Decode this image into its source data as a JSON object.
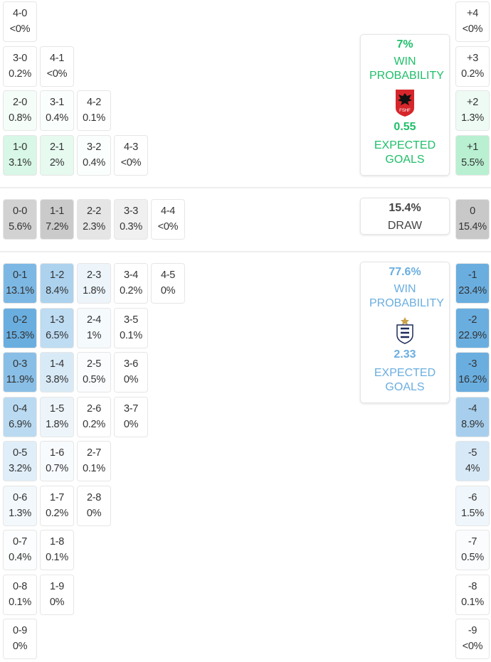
{
  "home": {
    "win_probability": "7%",
    "win_label": "WIN PROBABILITY",
    "expected_goals": "0.55",
    "xg_label": "EXPECTED GOALS",
    "crest": "albania-fshf-crest",
    "crest_text": "FSHF",
    "color": "#1fbf6a",
    "rows": [
      [
        {
          "s": "4-0",
          "p": "<0%"
        }
      ],
      [
        {
          "s": "3-0",
          "p": "0.2%"
        },
        {
          "s": "4-1",
          "p": "<0%"
        }
      ],
      [
        {
          "s": "2-0",
          "p": "0.8%"
        },
        {
          "s": "3-1",
          "p": "0.4%"
        },
        {
          "s": "4-2",
          "p": "0.1%"
        }
      ],
      [
        {
          "s": "1-0",
          "p": "3.1%"
        },
        {
          "s": "2-1",
          "p": "2%"
        },
        {
          "s": "3-2",
          "p": "0.4%"
        },
        {
          "s": "4-3",
          "p": "<0%"
        }
      ]
    ],
    "margins": [
      {
        "s": "+4",
        "p": "<0%"
      },
      {
        "s": "+3",
        "p": "0.2%"
      },
      {
        "s": "+2",
        "p": "1.3%"
      },
      {
        "s": "+1",
        "p": "5.5%"
      }
    ]
  },
  "draw": {
    "probability": "15.4%",
    "label": "DRAW",
    "row": [
      {
        "s": "0-0",
        "p": "5.6%"
      },
      {
        "s": "1-1",
        "p": "7.2%"
      },
      {
        "s": "2-2",
        "p": "2.3%"
      },
      {
        "s": "3-3",
        "p": "0.3%"
      },
      {
        "s": "4-4",
        "p": "<0%"
      }
    ],
    "margin": {
      "s": "0",
      "p": "15.4%"
    }
  },
  "away": {
    "win_probability": "77.6%",
    "win_label": "WIN PROBABILITY",
    "expected_goals": "2.33",
    "xg_label": "EXPECTED GOALS",
    "crest": "england-three-lions-crest",
    "color": "#6aaee0",
    "rows": [
      [
        {
          "s": "0-1",
          "p": "13.1%"
        },
        {
          "s": "1-2",
          "p": "8.4%"
        },
        {
          "s": "2-3",
          "p": "1.8%"
        },
        {
          "s": "3-4",
          "p": "0.2%"
        },
        {
          "s": "4-5",
          "p": "0%"
        }
      ],
      [
        {
          "s": "0-2",
          "p": "15.3%"
        },
        {
          "s": "1-3",
          "p": "6.5%"
        },
        {
          "s": "2-4",
          "p": "1%"
        },
        {
          "s": "3-5",
          "p": "0.1%"
        }
      ],
      [
        {
          "s": "0-3",
          "p": "11.9%"
        },
        {
          "s": "1-4",
          "p": "3.8%"
        },
        {
          "s": "2-5",
          "p": "0.5%"
        },
        {
          "s": "3-6",
          "p": "0%"
        }
      ],
      [
        {
          "s": "0-4",
          "p": "6.9%"
        },
        {
          "s": "1-5",
          "p": "1.8%"
        },
        {
          "s": "2-6",
          "p": "0.2%"
        },
        {
          "s": "3-7",
          "p": "0%"
        }
      ],
      [
        {
          "s": "0-5",
          "p": "3.2%"
        },
        {
          "s": "1-6",
          "p": "0.7%"
        },
        {
          "s": "2-7",
          "p": "0.1%"
        }
      ],
      [
        {
          "s": "0-6",
          "p": "1.3%"
        },
        {
          "s": "1-7",
          "p": "0.2%"
        },
        {
          "s": "2-8",
          "p": "0%"
        }
      ],
      [
        {
          "s": "0-7",
          "p": "0.4%"
        },
        {
          "s": "1-8",
          "p": "0.1%"
        }
      ],
      [
        {
          "s": "0-8",
          "p": "0.1%"
        },
        {
          "s": "1-9",
          "p": "0%"
        }
      ],
      [
        {
          "s": "0-9",
          "p": "0%"
        }
      ]
    ],
    "margins": [
      {
        "s": "-1",
        "p": "23.4%"
      },
      {
        "s": "-2",
        "p": "22.9%"
      },
      {
        "s": "-3",
        "p": "16.2%"
      },
      {
        "s": "-4",
        "p": "8.9%"
      },
      {
        "s": "-5",
        "p": "4%"
      },
      {
        "s": "-6",
        "p": "1.5%"
      },
      {
        "s": "-7",
        "p": "0.5%"
      },
      {
        "s": "-8",
        "p": "0.1%"
      },
      {
        "s": "-9",
        "p": "<0%"
      }
    ]
  }
}
